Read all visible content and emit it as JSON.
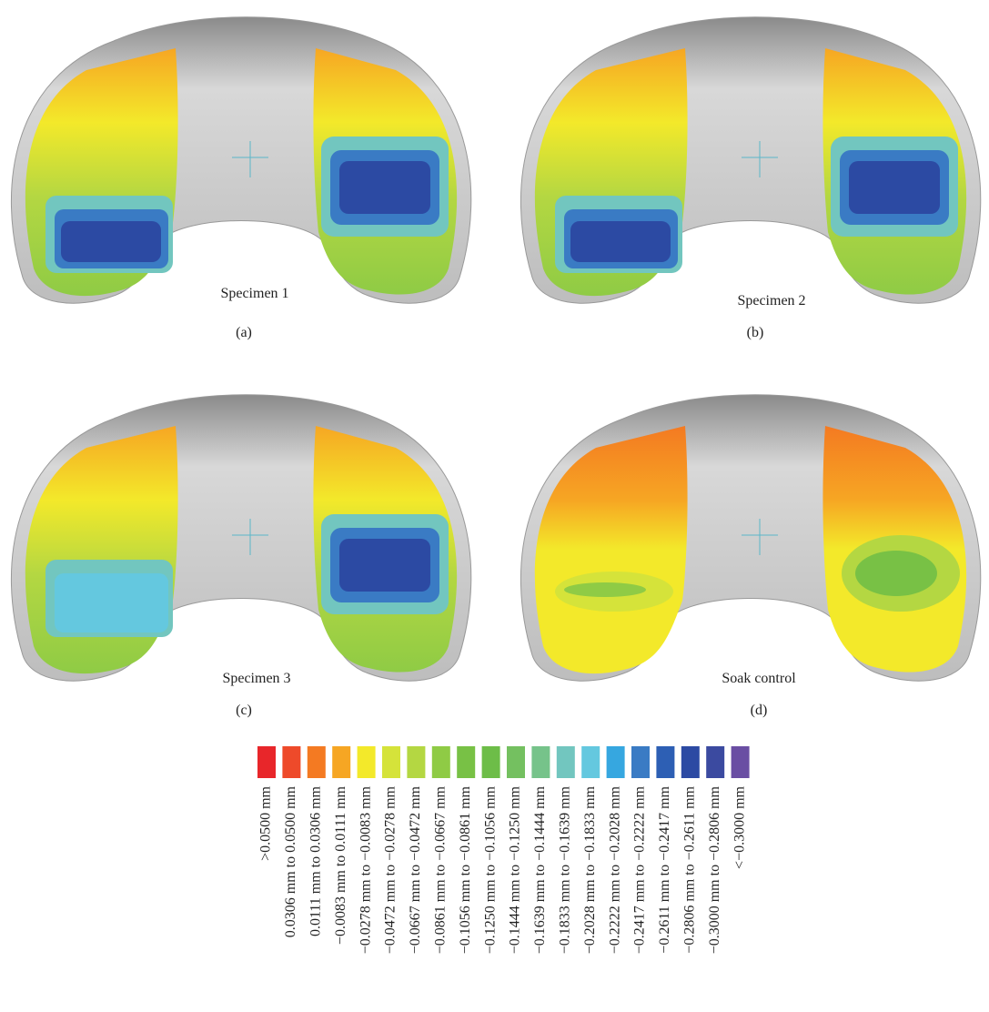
{
  "panels": [
    {
      "caption": "Specimen 1",
      "label": "(a)"
    },
    {
      "caption": "Specimen 2",
      "label": "(b)"
    },
    {
      "caption": "Specimen 3",
      "label": "(c)"
    },
    {
      "caption": "Soak control",
      "label": "(d)"
    }
  ],
  "legend": {
    "items": [
      {
        "color": "#e8262a",
        "label": ">0.0500 mm"
      },
      {
        "color": "#ee4a2a",
        "label": "0.0306 mm to 0.0500 mm"
      },
      {
        "color": "#f47a22",
        "label": "0.0111 mm to 0.0306 mm"
      },
      {
        "color": "#f6a623",
        "label": "−0.0083 mm to 0.0111 mm"
      },
      {
        "color": "#f3e92a",
        "label": "−0.0278 mm to −0.0083 mm"
      },
      {
        "color": "#d5e33a",
        "label": "−0.0472 mm to −0.0278 mm"
      },
      {
        "color": "#b4d742",
        "label": "−0.0667 mm to −0.0472 mm"
      },
      {
        "color": "#8fcb45",
        "label": "−0.0861 mm to −0.0667 mm"
      },
      {
        "color": "#78c145",
        "label": "−0.1056 mm to −0.0861 mm"
      },
      {
        "color": "#6dbd48",
        "label": "−0.1250 mm to −0.1056 mm"
      },
      {
        "color": "#74c060",
        "label": "−0.1444 mm to −0.1250 mm"
      },
      {
        "color": "#76c38a",
        "label": "−0.1639 mm to −0.1444 mm"
      },
      {
        "color": "#72c6bf",
        "label": "−0.1833 mm to −0.1639 mm"
      },
      {
        "color": "#64c8df",
        "label": "−0.2028 mm to −0.1833 mm"
      },
      {
        "color": "#36a7e0",
        "label": "−0.2222 mm to −0.2028 mm"
      },
      {
        "color": "#3a7bc4",
        "label": "−0.2417 mm to −0.2222 mm"
      },
      {
        "color": "#2d5fb4",
        "label": "−0.2611 mm to −0.2417 mm"
      },
      {
        "color": "#2c4aa3",
        "label": "−0.2806 mm to −0.2611 mm"
      },
      {
        "color": "#3b4aa0",
        "label": "−0.3000 mm to −0.2806 mm"
      },
      {
        "color": "#6a4ea3",
        "label": "<−0.3000 mm"
      }
    ]
  }
}
